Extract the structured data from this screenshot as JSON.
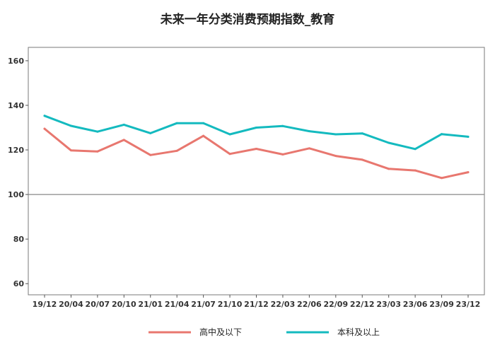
{
  "chart_data": {
    "type": "line",
    "title": "未来一年分类消费预期指数_教育",
    "xlabel": "",
    "ylabel": "",
    "categories": [
      "19/12",
      "20/04",
      "20/07",
      "20/10",
      "21/01",
      "21/04",
      "21/07",
      "21/10",
      "21/12",
      "22/03",
      "22/06",
      "22/09",
      "22/12",
      "23/03",
      "23/06",
      "23/09",
      "23/12"
    ],
    "ylim": [
      55,
      166
    ],
    "yticks": [
      60,
      80,
      100,
      120,
      140,
      160
    ],
    "reference_line": 100,
    "series": [
      {
        "name": "高中及以下",
        "color": "#E8776F",
        "values": [
          129.5,
          119.8,
          119.3,
          124.5,
          117.7,
          119.6,
          126.3,
          118.2,
          120.5,
          118.0,
          120.7,
          117.3,
          115.6,
          111.5,
          110.8,
          107.4,
          110.0
        ]
      },
      {
        "name": "本科及以上",
        "color": "#14BABF",
        "values": [
          135.3,
          130.8,
          128.2,
          131.3,
          127.5,
          132.0,
          132.0,
          127.0,
          130.0,
          130.7,
          128.4,
          127.0,
          127.4,
          123.2,
          120.4,
          127.1,
          125.9
        ]
      }
    ],
    "legend_position": "bottom"
  }
}
